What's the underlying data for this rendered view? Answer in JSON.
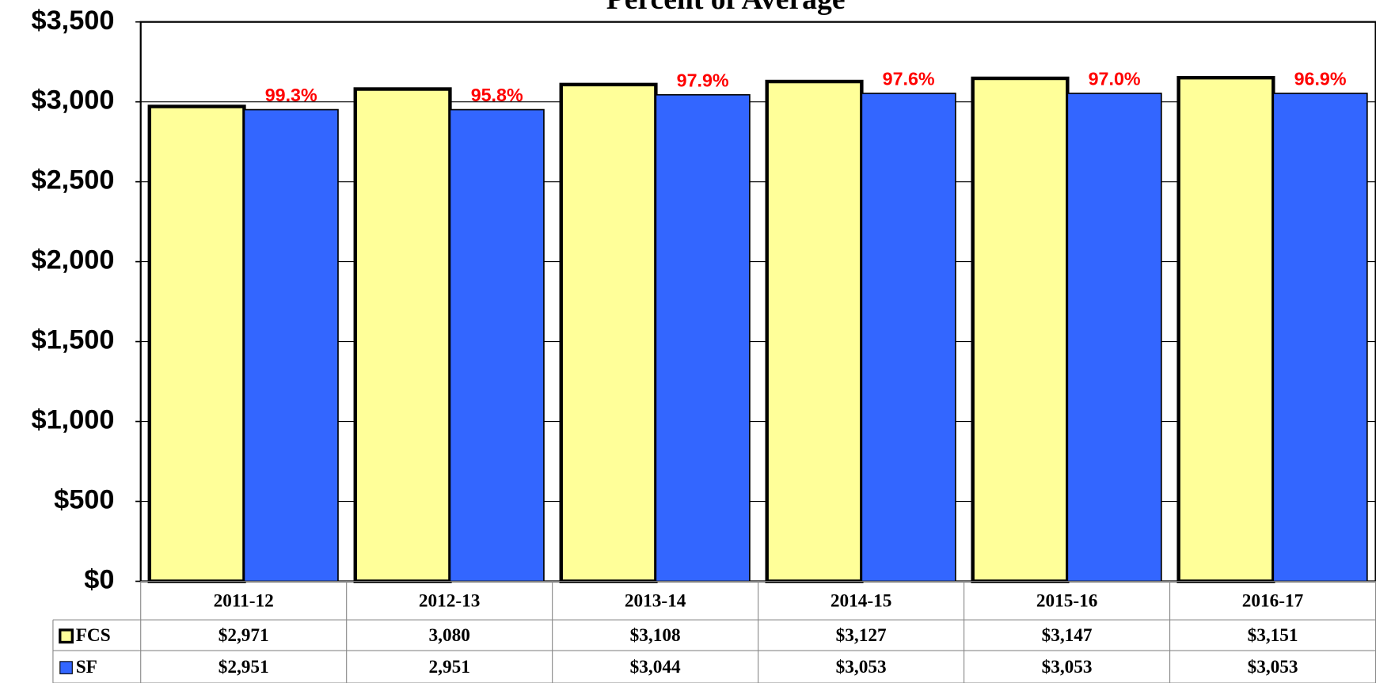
{
  "chart_data": {
    "type": "bar",
    "title": "Percent of Average",
    "categories": [
      "2011-12",
      "2012-13",
      "2013-14",
      "2014-15",
      "2015-16",
      "2016-17"
    ],
    "series": [
      {
        "name": "FCS",
        "color": "#ffff99",
        "values": [
          2971,
          3080,
          3108,
          3127,
          3147,
          3151
        ],
        "value_labels": [
          "$2,971",
          "3,080",
          "$3,108",
          "$3,127",
          "$3,147",
          "$3,151"
        ]
      },
      {
        "name": "SF",
        "color": "#3366ff",
        "values": [
          2951,
          2951,
          3044,
          3053,
          3053,
          3053
        ],
        "value_labels": [
          "$2,951",
          "2,951",
          "$3,044",
          "$3,053",
          "$3,053",
          "$3,053"
        ]
      }
    ],
    "annotations": [
      "99.3%",
      "95.8%",
      "97.9%",
      "97.6%",
      "97.0%",
      "96.9%"
    ],
    "ylim": [
      0,
      3500
    ],
    "yticks": [
      {
        "value": 0,
        "label": "$0"
      },
      {
        "value": 500,
        "label": "$500"
      },
      {
        "value": 1000,
        "label": "$1,000"
      },
      {
        "value": 1500,
        "label": "$1,500"
      },
      {
        "value": 2000,
        "label": "$2,000"
      },
      {
        "value": 2500,
        "label": "$2,500"
      },
      {
        "value": 3000,
        "label": "$3,000"
      },
      {
        "value": 3500,
        "label": "$3,500"
      }
    ],
    "grid": true
  }
}
